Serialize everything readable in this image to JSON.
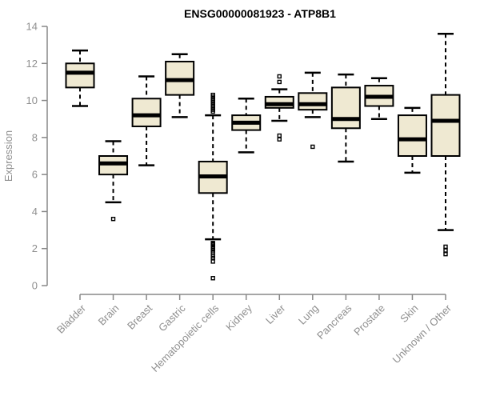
{
  "chart_data": {
    "type": "box",
    "title": "ENSG00000081923 - ATP8B1",
    "xlabel": "",
    "ylabel": "Expression",
    "ylim": [
      0,
      14
    ],
    "yticks": [
      0,
      2,
      4,
      6,
      8,
      10,
      12,
      14
    ],
    "grid": false,
    "legend": "none",
    "colors": {
      "box_fill": "#EFE9D2",
      "box_border": "#000000",
      "median": "#000000",
      "whisker": "#000000",
      "axis": "#888888",
      "tick_label": "#8f8f8f",
      "title": "#000000",
      "background": "#ffffff"
    },
    "categories": [
      "Bladder",
      "Brain",
      "Breast",
      "Gastric",
      "Hematopoietic cells",
      "Kidney",
      "Liver",
      "Lung",
      "Pancreas",
      "Prostate",
      "Skin",
      "Unknown / Other"
    ],
    "boxes": [
      {
        "category": "Bladder",
        "whisker_low": 9.7,
        "q1": 10.7,
        "median": 11.5,
        "q3": 12.0,
        "whisker_high": 12.7,
        "outliers": []
      },
      {
        "category": "Brain",
        "whisker_low": 4.5,
        "q1": 6.0,
        "median": 6.6,
        "q3": 7.0,
        "whisker_high": 7.8,
        "outliers": [
          3.6
        ]
      },
      {
        "category": "Breast",
        "whisker_low": 6.5,
        "q1": 8.6,
        "median": 9.2,
        "q3": 10.1,
        "whisker_high": 11.3,
        "outliers": []
      },
      {
        "category": "Gastric",
        "whisker_low": 9.1,
        "q1": 10.3,
        "median": 11.1,
        "q3": 12.1,
        "whisker_high": 12.5,
        "outliers": []
      },
      {
        "category": "Hematopoietic cells",
        "whisker_low": 2.5,
        "q1": 5.0,
        "median": 5.9,
        "q3": 6.7,
        "whisker_high": 9.2,
        "outliers": [
          10.3,
          10.2,
          10.1,
          10.0,
          9.9,
          9.8,
          9.7,
          9.6,
          9.5,
          9.4,
          2.3,
          2.25,
          2.2,
          2.1,
          2.0,
          1.9,
          1.8,
          1.6,
          1.5,
          1.3,
          0.4
        ]
      },
      {
        "category": "Kidney",
        "whisker_low": 7.2,
        "q1": 8.4,
        "median": 8.8,
        "q3": 9.2,
        "whisker_high": 10.1,
        "outliers": []
      },
      {
        "category": "Liver",
        "whisker_low": 8.9,
        "q1": 9.6,
        "median": 9.8,
        "q3": 10.2,
        "whisker_high": 10.6,
        "outliers": [
          11.3,
          11.0,
          8.1,
          7.9
        ]
      },
      {
        "category": "Lung",
        "whisker_low": 9.1,
        "q1": 9.5,
        "median": 9.8,
        "q3": 10.4,
        "whisker_high": 11.5,
        "outliers": [
          7.5
        ]
      },
      {
        "category": "Pancreas",
        "whisker_low": 6.7,
        "q1": 8.5,
        "median": 9.0,
        "q3": 10.7,
        "whisker_high": 11.4,
        "outliers": []
      },
      {
        "category": "Prostate",
        "whisker_low": 9.0,
        "q1": 9.7,
        "median": 10.2,
        "q3": 10.8,
        "whisker_high": 11.2,
        "outliers": []
      },
      {
        "category": "Skin",
        "whisker_low": 6.1,
        "q1": 7.0,
        "median": 7.9,
        "q3": 9.2,
        "whisker_high": 9.6,
        "outliers": []
      },
      {
        "category": "Unknown / Other",
        "whisker_low": 3.0,
        "q1": 7.0,
        "median": 8.9,
        "q3": 10.3,
        "whisker_high": 13.6,
        "outliers": [
          2.1,
          1.9,
          1.7
        ]
      }
    ]
  }
}
